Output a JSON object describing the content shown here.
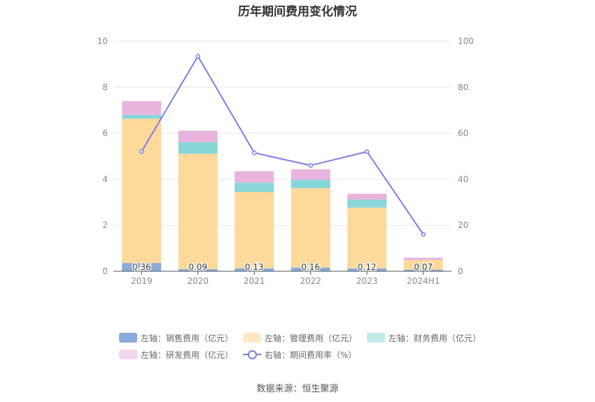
{
  "title": "历年期间费用变化情况",
  "source": "数据来源：恒生聚源",
  "chart_data": {
    "type": "bar",
    "stacked": true,
    "categories": [
      "2019",
      "2020",
      "2021",
      "2022",
      "2023",
      "2024H1"
    ],
    "left_axis": {
      "ylim": [
        0,
        10
      ],
      "ticks": [
        "0",
        "2",
        "4",
        "6",
        "8",
        "10"
      ]
    },
    "right_axis": {
      "ylim": [
        0,
        100
      ],
      "ticks": [
        "0",
        "20",
        "40",
        "60",
        "80",
        "100"
      ]
    },
    "grid": true,
    "legend_position": "bottom",
    "series": [
      {
        "name": "左轴：销售费用（亿元）",
        "axis": "left",
        "type": "bar",
        "color": "#8aabdb",
        "values": [
          0.36,
          0.09,
          0.13,
          0.16,
          0.12,
          0.07
        ],
        "labels": [
          "0.36",
          "0.09",
          "0.13",
          "0.16",
          "0.12",
          "0.07"
        ]
      },
      {
        "name": "左轴：管理费用（亿元）",
        "axis": "left",
        "type": "bar",
        "color": "#ffd99a",
        "values": [
          6.27,
          5.02,
          3.32,
          3.45,
          2.65,
          0.42
        ]
      },
      {
        "name": "左轴：财务费用（亿元）",
        "axis": "left",
        "type": "bar",
        "color": "#86d6d8",
        "values": [
          0.17,
          0.5,
          0.4,
          0.37,
          0.35,
          0.0
        ]
      },
      {
        "name": "左轴：研发费用（亿元）",
        "axis": "left",
        "type": "bar",
        "color": "#e8b4de",
        "values": [
          0.6,
          0.5,
          0.5,
          0.45,
          0.25,
          0.1
        ]
      },
      {
        "name": "右轴：期间费用率（%）",
        "axis": "right",
        "type": "line",
        "color": "#7b7fe8",
        "values": [
          52,
          93.5,
          51.5,
          46,
          52,
          16
        ]
      }
    ]
  },
  "legend_colors": {
    "sales": "#8aabdb",
    "admin": "#ffe8c4",
    "finance": "#bfeaea",
    "rd": "#f3d6ec",
    "rate": "#7b7fe8"
  }
}
